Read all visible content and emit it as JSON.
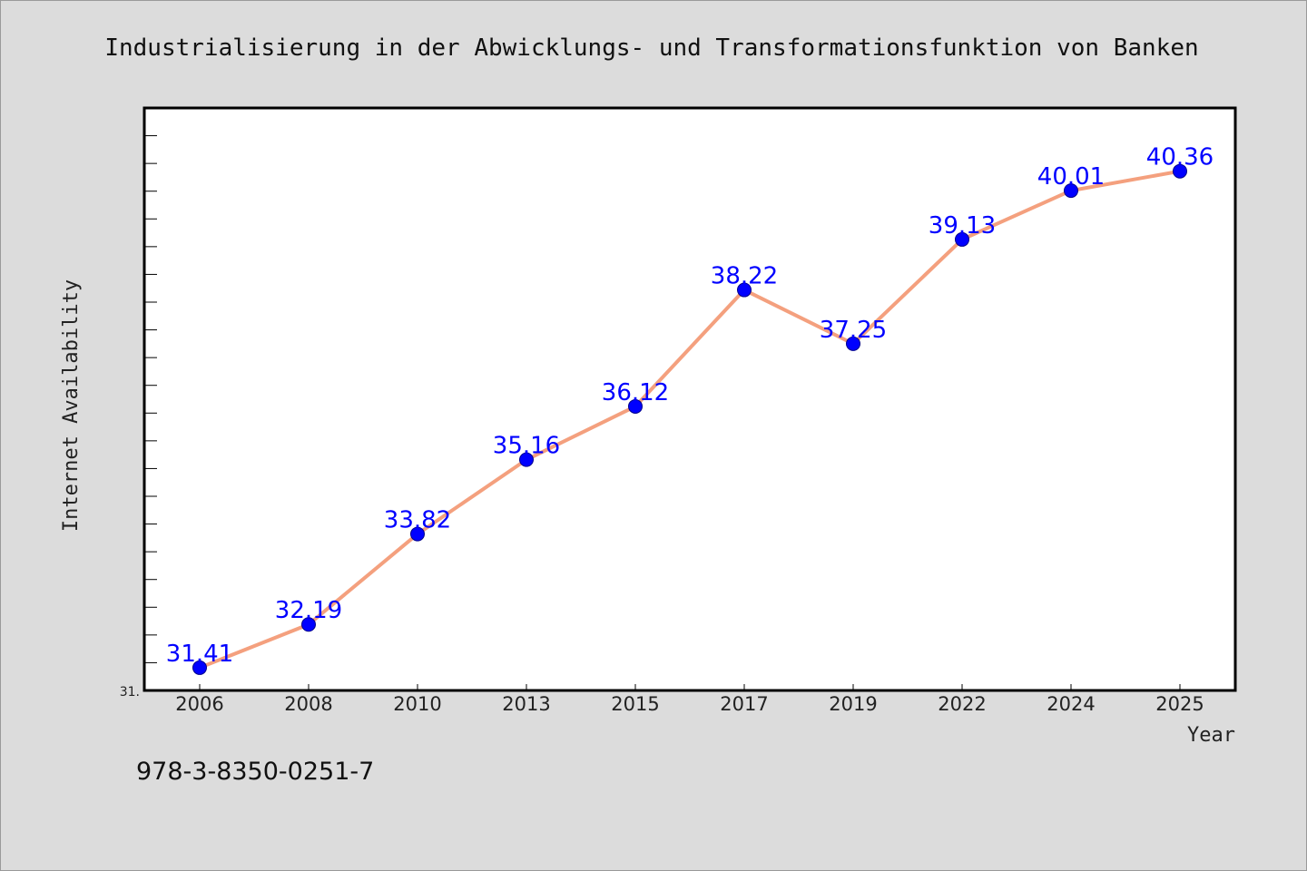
{
  "chart_data": {
    "type": "line",
    "title": "Industrialisierung in der Abwicklungs- und Transformationsfunktion von Banken",
    "xlabel": "Year",
    "ylabel": "Internet Availability",
    "categories": [
      "2006",
      "2008",
      "2010",
      "2013",
      "2015",
      "2017",
      "2019",
      "2022",
      "2024",
      "2025"
    ],
    "values": [
      31.41,
      32.19,
      33.82,
      35.16,
      36.12,
      38.22,
      37.25,
      39.13,
      40.01,
      40.36
    ],
    "value_labels": [
      "31.41",
      "32.19",
      "33.82",
      "35.16",
      "36.12",
      "38.22",
      "37.25",
      "39.13",
      "40.01",
      "40.36"
    ],
    "ylim": [
      31.0,
      41.5
    ],
    "y_tick_label": "31.",
    "y_minor_tick_step": 0.5,
    "grid": false,
    "line_color": "#f4a07e",
    "marker_color": "#0000ff",
    "label_color": "#0000ff",
    "plot_background": "#ffffff",
    "page_background": "#dcdcdc"
  },
  "footer": {
    "isbn": "978-3-8350-0251-7"
  }
}
